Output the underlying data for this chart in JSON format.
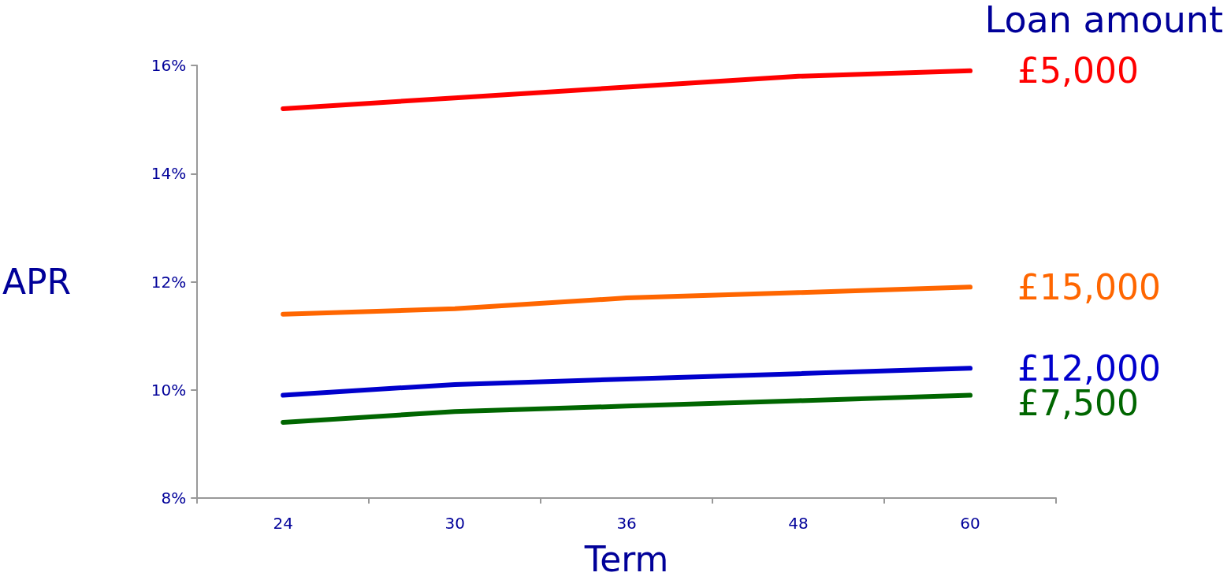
{
  "chart_data": {
    "type": "line",
    "xlabel": "Term",
    "ylabel": "APR",
    "legend_title": "Loan amount",
    "categories": [
      "24",
      "30",
      "36",
      "48",
      "60"
    ],
    "ylim": [
      8,
      16
    ],
    "yticks": [
      {
        "value": 8,
        "label": "8%"
      },
      {
        "value": 10,
        "label": "10%"
      },
      {
        "value": 12,
        "label": "12%"
      },
      {
        "value": 14,
        "label": "14%"
      },
      {
        "value": 16,
        "label": "16%"
      }
    ],
    "grid": false,
    "marker": "none",
    "line_style": "solid",
    "series": [
      {
        "name": "£5,000",
        "color": "#ff0000",
        "values": [
          15.2,
          15.4,
          15.6,
          15.8,
          15.9
        ]
      },
      {
        "name": "£15,000",
        "color": "#ff6600",
        "values": [
          11.4,
          11.5,
          11.7,
          11.8,
          11.9
        ]
      },
      {
        "name": "£12,000",
        "color": "#0000cc",
        "values": [
          9.9,
          10.1,
          10.2,
          10.3,
          10.4
        ]
      },
      {
        "name": "£7,500",
        "color": "#006600",
        "values": [
          9.4,
          9.6,
          9.7,
          9.8,
          9.9
        ]
      }
    ]
  }
}
